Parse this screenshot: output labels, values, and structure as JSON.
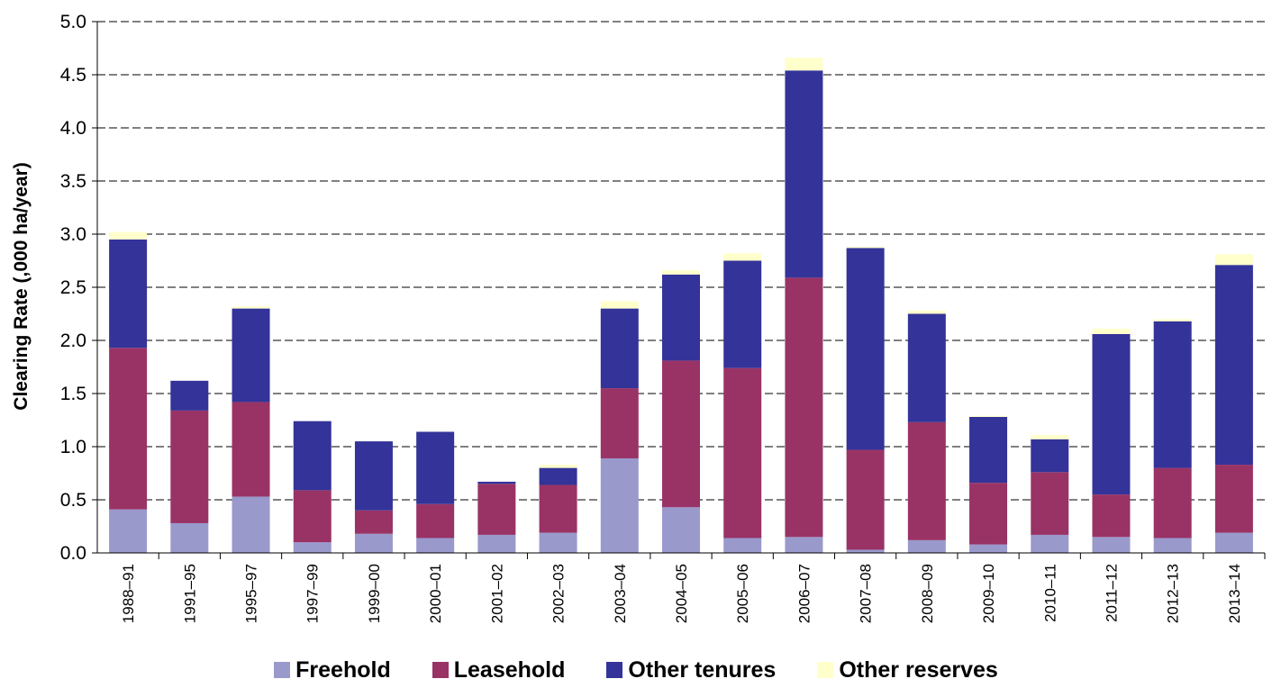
{
  "chart_data": {
    "type": "bar",
    "stacked": true,
    "title": "",
    "xlabel": "",
    "ylabel": "Clearing Rate (,000 ha/year)",
    "ylim": [
      0,
      5.0
    ],
    "yticks": [
      "0.0",
      "0.5",
      "1.0",
      "1.5",
      "2.0",
      "2.5",
      "3.0",
      "3.5",
      "4.0",
      "4.5",
      "5.0"
    ],
    "grid": "horizontal dashed",
    "legend_position": "bottom",
    "categories": [
      "1988–91",
      "1991–95",
      "1995–97",
      "1997–99",
      "1999–00",
      "2000–01",
      "2001–02",
      "2002–03",
      "2003–04",
      "2004–05",
      "2005–06",
      "2006–07",
      "2007–08",
      "2008–09",
      "2009–10",
      "2010–11",
      "2011–12",
      "2012–13",
      "2013–14"
    ],
    "series": [
      {
        "name": "Freehold",
        "color": "#9999cc",
        "values": [
          0.41,
          0.28,
          0.53,
          0.1,
          0.18,
          0.14,
          0.17,
          0.19,
          0.89,
          0.43,
          0.14,
          0.15,
          0.03,
          0.12,
          0.08,
          0.17,
          0.15,
          0.14,
          0.19
        ]
      },
      {
        "name": "Leasehold",
        "color": "#993366",
        "values": [
          1.52,
          1.06,
          0.89,
          0.49,
          0.22,
          0.32,
          0.48,
          0.45,
          0.66,
          1.38,
          1.6,
          2.44,
          0.94,
          1.11,
          0.58,
          0.59,
          0.4,
          0.66,
          0.64
        ]
      },
      {
        "name": "Other tenures",
        "color": "#333399",
        "values": [
          1.02,
          0.28,
          0.88,
          0.65,
          0.65,
          0.68,
          0.02,
          0.16,
          0.75,
          0.81,
          1.01,
          1.95,
          1.9,
          1.02,
          0.62,
          0.31,
          1.51,
          1.38,
          1.88
        ]
      },
      {
        "name": "Other reserves",
        "color": "#ffffcc",
        "values": [
          0.07,
          0.0,
          0.02,
          0.0,
          0.0,
          0.0,
          0.0,
          0.03,
          0.07,
          0.04,
          0.07,
          0.12,
          0.01,
          0.03,
          0.01,
          0.04,
          0.05,
          0.02,
          0.1
        ]
      }
    ]
  }
}
